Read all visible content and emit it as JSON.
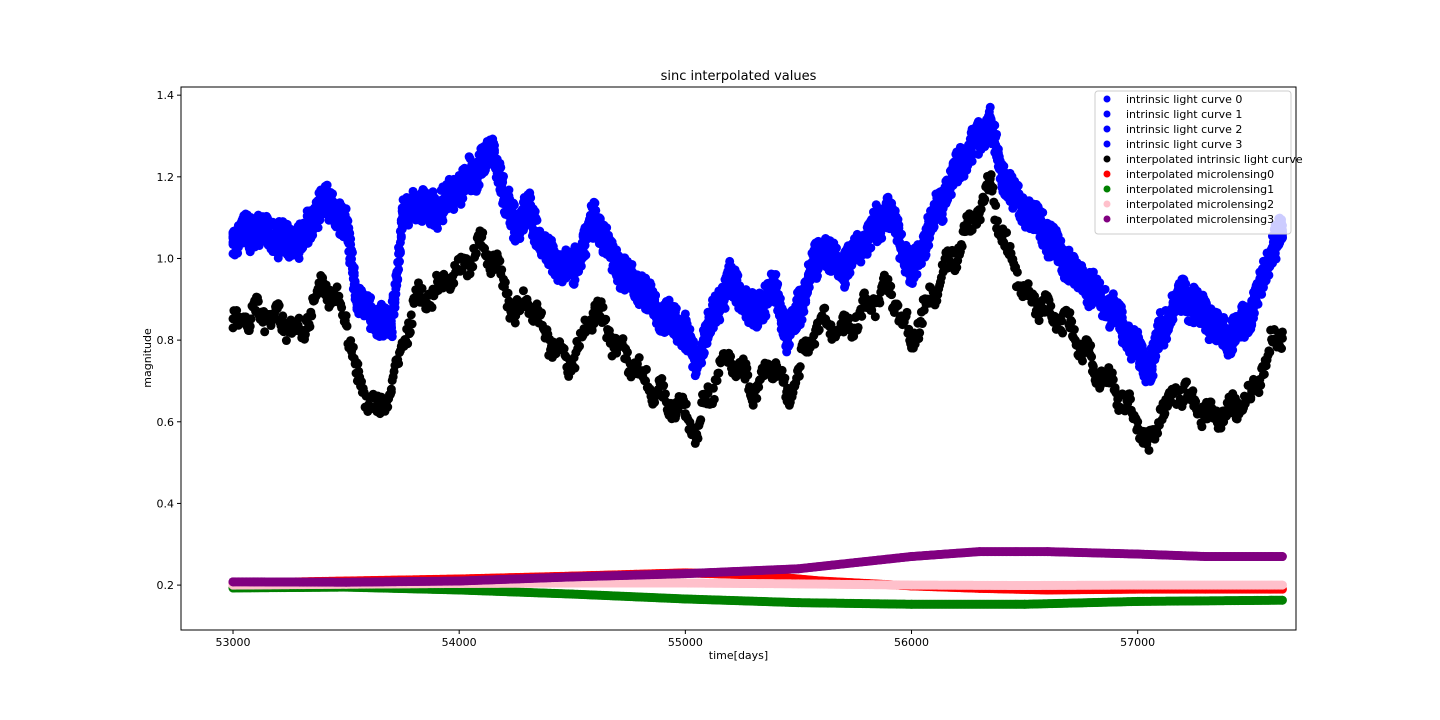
{
  "chart_data": {
    "type": "scatter",
    "title": "sinc interpolated values",
    "xlabel": "time[days]",
    "ylabel": "magnitude",
    "xlim": [
      52770,
      57700
    ],
    "ylim": [
      0.09,
      1.42
    ],
    "xticks": [
      53000,
      54000,
      55000,
      56000,
      57000
    ],
    "yticks": [
      0.2,
      0.4,
      0.6,
      0.8,
      1.0,
      1.2,
      1.4
    ],
    "ytick_labels": [
      "0.2",
      "0.4",
      "0.6",
      "0.8",
      "1.0",
      "1.2",
      "1.4"
    ],
    "legend_position": "top-right",
    "grid": false,
    "series": [
      {
        "name": "intrinsic light curve 0",
        "color": "#0000ff",
        "x": [
          53000,
          53100,
          53200,
          53300,
          53400,
          53500,
          53550,
          53600,
          53700,
          53750,
          53800,
          53900,
          54000,
          54100,
          54150,
          54200,
          54250,
          54300,
          54400,
          54500,
          54600,
          54700,
          54800,
          54900,
          55000,
          55050,
          55100,
          55200,
          55300,
          55400,
          55450,
          55500,
          55600,
          55700,
          55800,
          55900,
          56000,
          56100,
          56200,
          56300,
          56350,
          56400,
          56500,
          56600,
          56700,
          56800,
          56900,
          57000,
          57050,
          57100,
          57200,
          57300,
          57400,
          57500,
          57600,
          57640
        ],
        "y": [
          1.05,
          1.07,
          1.05,
          1.04,
          1.15,
          1.08,
          0.9,
          0.87,
          0.83,
          1.1,
          1.13,
          1.12,
          1.17,
          1.23,
          1.27,
          1.15,
          1.08,
          1.12,
          1.0,
          0.97,
          1.1,
          0.98,
          0.93,
          0.86,
          0.82,
          0.74,
          0.83,
          0.95,
          0.86,
          0.93,
          0.8,
          0.88,
          1.02,
          0.98,
          1.05,
          1.12,
          0.96,
          1.1,
          1.22,
          1.3,
          1.33,
          1.2,
          1.12,
          1.06,
          0.98,
          0.92,
          0.87,
          0.77,
          0.72,
          0.82,
          0.91,
          0.86,
          0.8,
          0.86,
          1.03,
          1.06
        ]
      },
      {
        "name": "intrinsic light curve 1",
        "color": "#0000ff",
        "x": [
          53000,
          53100,
          53200,
          53300,
          53400,
          53500,
          53550,
          53600,
          53700,
          53750,
          53800,
          53900,
          54000,
          54100,
          54150,
          54200,
          54250,
          54300,
          54400,
          54500,
          54600,
          54700,
          54800,
          54900,
          55000,
          55050,
          55100,
          55200,
          55300,
          55400,
          55450,
          55500,
          55600,
          55700,
          55800,
          55900,
          56000,
          56100,
          56200,
          56300,
          56350,
          56400,
          56500,
          56600,
          56700,
          56800,
          56900,
          57000,
          57050,
          57100,
          57200,
          57300,
          57400,
          57500,
          57600,
          57640
        ],
        "y": [
          1.06,
          1.08,
          1.04,
          1.05,
          1.14,
          1.09,
          0.91,
          0.86,
          0.84,
          1.11,
          1.12,
          1.13,
          1.18,
          1.24,
          1.26,
          1.16,
          1.07,
          1.13,
          1.01,
          0.96,
          1.11,
          0.97,
          0.94,
          0.85,
          0.83,
          0.73,
          0.84,
          0.94,
          0.87,
          0.92,
          0.79,
          0.89,
          1.03,
          0.97,
          1.06,
          1.13,
          0.95,
          1.11,
          1.23,
          1.29,
          1.34,
          1.19,
          1.13,
          1.05,
          0.99,
          0.91,
          0.86,
          0.78,
          0.71,
          0.83,
          0.9,
          0.85,
          0.81,
          0.87,
          1.02,
          1.05
        ]
      },
      {
        "name": "intrinsic light curve 2",
        "color": "#0000ff",
        "x": [
          53000,
          53100,
          53200,
          53300,
          53400,
          53500,
          53550,
          53600,
          53700,
          53750,
          53800,
          53900,
          54000,
          54100,
          54150,
          54200,
          54250,
          54300,
          54400,
          54500,
          54600,
          54700,
          54800,
          54900,
          55000,
          55050,
          55100,
          55200,
          55300,
          55400,
          55450,
          55500,
          55600,
          55700,
          55800,
          55900,
          56000,
          56100,
          56200,
          56300,
          56350,
          56400,
          56500,
          56600,
          56700,
          56800,
          56900,
          57000,
          57050,
          57100,
          57200,
          57300,
          57400,
          57500,
          57600,
          57640
        ],
        "y": [
          1.04,
          1.06,
          1.06,
          1.03,
          1.16,
          1.07,
          0.89,
          0.88,
          0.82,
          1.09,
          1.14,
          1.11,
          1.16,
          1.22,
          1.28,
          1.14,
          1.09,
          1.11,
          0.99,
          0.98,
          1.09,
          0.99,
          0.92,
          0.87,
          0.81,
          0.75,
          0.82,
          0.96,
          0.85,
          0.94,
          0.81,
          0.87,
          1.01,
          0.99,
          1.04,
          1.11,
          0.97,
          1.09,
          1.21,
          1.31,
          1.32,
          1.21,
          1.11,
          1.07,
          0.97,
          0.93,
          0.88,
          0.76,
          0.73,
          0.81,
          0.92,
          0.87,
          0.79,
          0.85,
          1.04,
          1.07
        ]
      },
      {
        "name": "intrinsic light curve 3",
        "color": "#0000ff",
        "x": [
          53000,
          53100,
          53200,
          53300,
          53400,
          53500,
          53550,
          53600,
          53700,
          53750,
          53800,
          53900,
          54000,
          54100,
          54150,
          54200,
          54250,
          54300,
          54400,
          54500,
          54600,
          54700,
          54800,
          54900,
          55000,
          55050,
          55100,
          55200,
          55300,
          55400,
          55450,
          55500,
          55600,
          55700,
          55800,
          55900,
          56000,
          56100,
          56200,
          56300,
          56350,
          56400,
          56500,
          56600,
          56700,
          56800,
          56900,
          57000,
          57050,
          57100,
          57200,
          57300,
          57400,
          57500,
          57600,
          57640
        ],
        "y": [
          1.05,
          1.07,
          1.05,
          1.04,
          1.15,
          1.08,
          0.9,
          0.87,
          0.83,
          1.1,
          1.13,
          1.12,
          1.17,
          1.23,
          1.27,
          1.15,
          1.08,
          1.12,
          1.0,
          0.97,
          1.1,
          0.98,
          0.93,
          0.86,
          0.82,
          0.74,
          0.83,
          0.95,
          0.86,
          0.93,
          0.8,
          0.88,
          1.02,
          0.98,
          1.05,
          1.12,
          0.96,
          1.1,
          1.22,
          1.3,
          1.33,
          1.2,
          1.12,
          1.06,
          0.98,
          0.92,
          0.87,
          0.77,
          0.72,
          0.82,
          0.91,
          0.86,
          0.8,
          0.86,
          1.03,
          1.06
        ]
      },
      {
        "name": "interpolated intrinsic light curve",
        "color": "#000000",
        "x": [
          53000,
          53100,
          53200,
          53300,
          53400,
          53500,
          53550,
          53600,
          53650,
          53700,
          53800,
          53900,
          54000,
          54100,
          54150,
          54200,
          54250,
          54300,
          54400,
          54500,
          54600,
          54700,
          54800,
          54900,
          55000,
          55050,
          55100,
          55200,
          55300,
          55400,
          55450,
          55500,
          55600,
          55700,
          55800,
          55900,
          56000,
          56100,
          56200,
          56300,
          56350,
          56400,
          56500,
          56600,
          56700,
          56800,
          56900,
          57000,
          57050,
          57100,
          57200,
          57300,
          57400,
          57500,
          57600,
          57640
        ],
        "y": [
          0.83,
          0.87,
          0.85,
          0.82,
          0.94,
          0.86,
          0.7,
          0.66,
          0.62,
          0.68,
          0.89,
          0.92,
          0.97,
          1.03,
          1.0,
          0.93,
          0.86,
          0.9,
          0.8,
          0.74,
          0.88,
          0.78,
          0.72,
          0.66,
          0.62,
          0.57,
          0.67,
          0.76,
          0.68,
          0.74,
          0.65,
          0.73,
          0.85,
          0.82,
          0.88,
          0.93,
          0.8,
          0.92,
          1.02,
          1.12,
          1.18,
          1.05,
          0.92,
          0.87,
          0.83,
          0.74,
          0.68,
          0.6,
          0.53,
          0.63,
          0.68,
          0.62,
          0.62,
          0.66,
          0.8,
          0.82
        ]
      },
      {
        "name": "interpolated microlensing0",
        "color": "#ff0000",
        "x": [
          53000,
          53500,
          54000,
          54500,
          55000,
          55300,
          55600,
          56000,
          56300,
          56600,
          57000,
          57300,
          57640
        ],
        "y": [
          0.205,
          0.21,
          0.215,
          0.222,
          0.23,
          0.225,
          0.21,
          0.198,
          0.192,
          0.188,
          0.19,
          0.19,
          0.19
        ]
      },
      {
        "name": "interpolated microlensing1",
        "color": "#008000",
        "x": [
          53000,
          53500,
          54000,
          54500,
          55000,
          55500,
          56000,
          56500,
          57000,
          57640
        ],
        "y": [
          0.193,
          0.195,
          0.188,
          0.178,
          0.166,
          0.157,
          0.153,
          0.153,
          0.16,
          0.163
        ]
      },
      {
        "name": "interpolated microlensing2",
        "color": "#ffc0cb",
        "x": [
          53000,
          53500,
          54000,
          54500,
          55000,
          55500,
          56000,
          56500,
          57000,
          57640
        ],
        "y": [
          0.2,
          0.202,
          0.204,
          0.205,
          0.205,
          0.203,
          0.2,
          0.199,
          0.2,
          0.2
        ]
      },
      {
        "name": "interpolated microlensing3",
        "color": "#800080",
        "x": [
          53000,
          53500,
          54000,
          54500,
          55000,
          55500,
          56000,
          56300,
          56600,
          57000,
          57300,
          57640
        ],
        "y": [
          0.208,
          0.207,
          0.21,
          0.22,
          0.228,
          0.24,
          0.27,
          0.282,
          0.282,
          0.276,
          0.27,
          0.27
        ]
      }
    ]
  }
}
